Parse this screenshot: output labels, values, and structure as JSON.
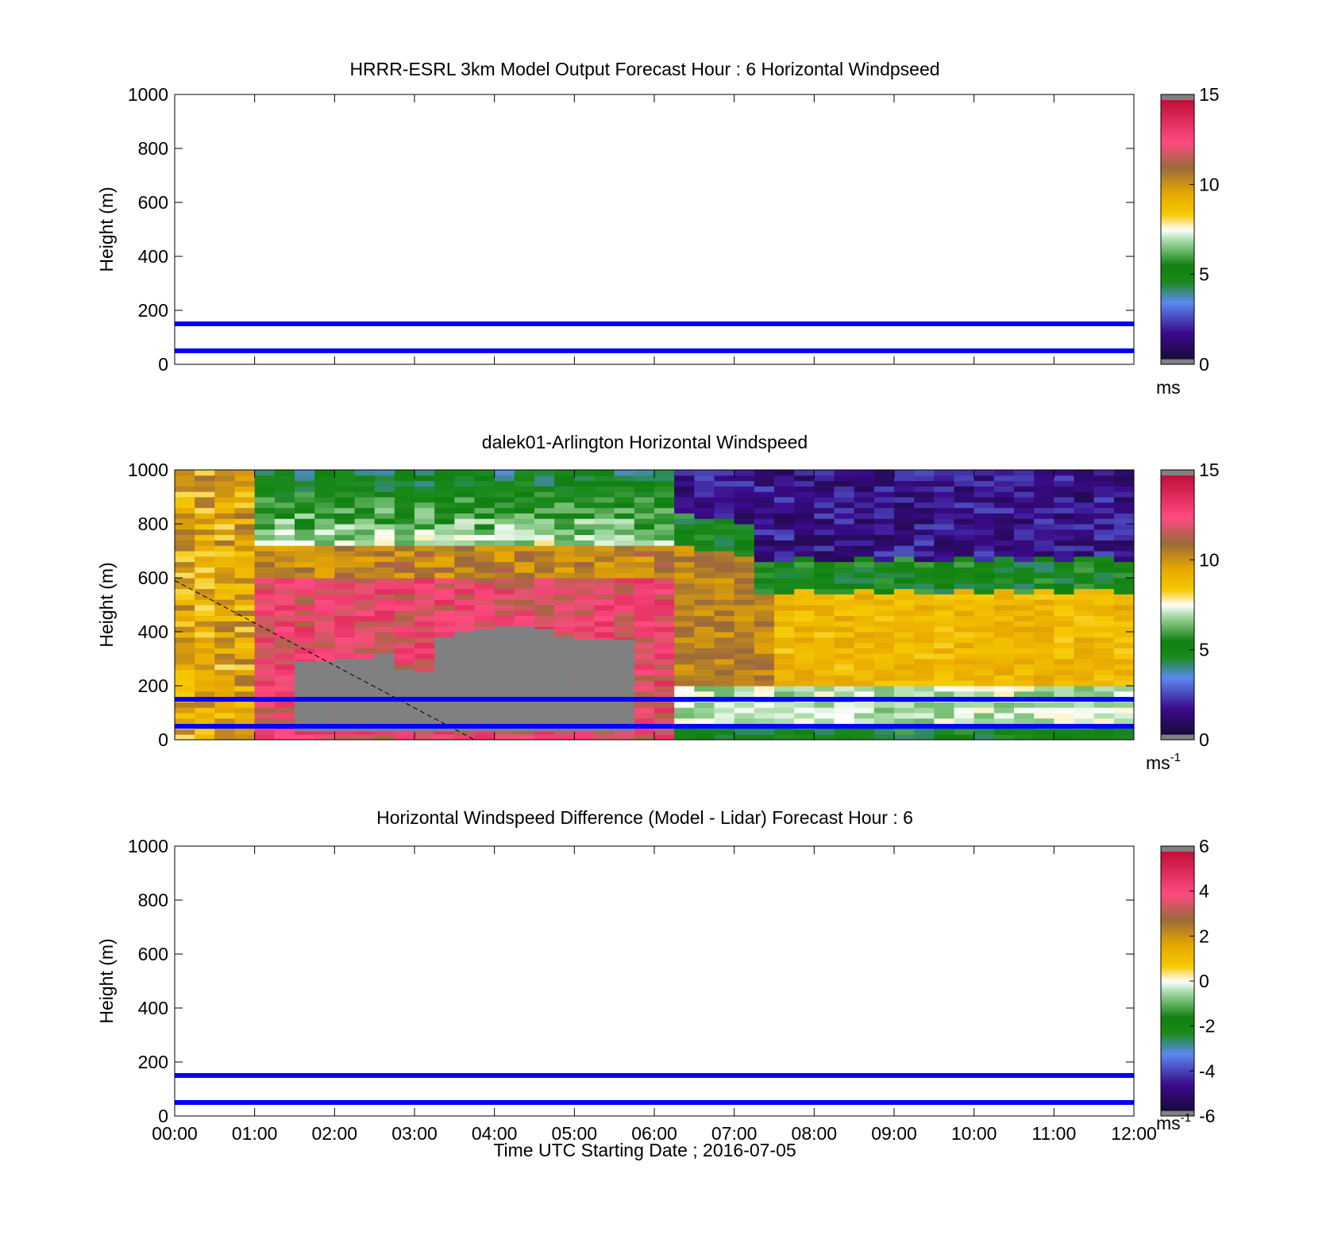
{
  "chart_data": [
    {
      "type": "heatmap",
      "title": "HRRR-ESRL 3km Model Output   Forecast Hour : 6 Horizontal Windpseed",
      "ylabel": "Height (m)",
      "xlabel": "",
      "ylim": [
        0,
        1000
      ],
      "xlim": [
        "00:00",
        "12:00"
      ],
      "y_ticks": [
        "0",
        "200",
        "400",
        "600",
        "800",
        "1000"
      ],
      "x_ticks": [
        "00:00",
        "01:00",
        "02:00",
        "03:00",
        "04:00",
        "05:00",
        "06:00",
        "07:00",
        "08:00",
        "09:00",
        "10:00",
        "11:00",
        "12:00"
      ],
      "show_x_tick_labels": false,
      "reference_lines_m": [
        50,
        150
      ],
      "reference_line_color": "#0000ff",
      "data": "none",
      "colorbar": {
        "min": 0,
        "max": 15,
        "ticks": [
          "0",
          "5",
          "10",
          "15"
        ],
        "unit": "ms",
        "unit_superscript": "",
        "colormap": "windspeed"
      }
    },
    {
      "type": "heatmap",
      "title": "dalek01-Arlington  Horizontal Windspeed",
      "ylabel": "Height (m)",
      "xlabel": "",
      "ylim": [
        0,
        1000
      ],
      "xlim": [
        "00:00",
        "12:00"
      ],
      "y_ticks": [
        "0",
        "200",
        "400",
        "600",
        "800",
        "1000"
      ],
      "x_ticks": [
        "00:00",
        "01:00",
        "02:00",
        "03:00",
        "04:00",
        "05:00",
        "06:00",
        "07:00",
        "08:00",
        "09:00",
        "10:00",
        "11:00",
        "12:00"
      ],
      "show_x_tick_labels": false,
      "reference_lines_m": [
        50,
        150
      ],
      "reference_line_color": "#0000ff",
      "data": "lidar",
      "time_step_minutes": 15,
      "height_step_m": 20,
      "data_end_hour": 11.75,
      "missing_color": "#808080",
      "missing_top_m": [
        0,
        0,
        0,
        0,
        0,
        0,
        290,
        290,
        300,
        300,
        320,
        260,
        250,
        380,
        400,
        410,
        420,
        420,
        410,
        380,
        370,
        370,
        370,
        0,
        0,
        0,
        0,
        0,
        0,
        0,
        0,
        0,
        0,
        0,
        0,
        0,
        0,
        0,
        0,
        0,
        0,
        0,
        0,
        0,
        0,
        0,
        0,
        0
      ],
      "missing_bottom_m": 30,
      "mixing_layer_line": {
        "from": [
          0,
          590
        ],
        "to": [
          3.75,
          0
        ],
        "style": "dashed"
      },
      "windspeed_profile_ms": [
        {
          "height_m": 30,
          "speed_ms": 12
        },
        {
          "height_m": 600,
          "speed_ms": 11.5
        },
        {
          "height_m": 1000,
          "speed_ms": 4
        }
      ],
      "colorbar": {
        "min": 0,
        "max": 15,
        "ticks": [
          "0",
          "5",
          "10",
          "15"
        ],
        "unit": "ms",
        "unit_superscript": "-1",
        "colormap": "windspeed"
      }
    },
    {
      "type": "heatmap",
      "title": "Horizontal Windspeed Difference (Model - Lidar) Forecast Hour : 6",
      "ylabel": "Height (m)",
      "xlabel": "Time UTC  Starting Date ; 2016-07-05",
      "ylim": [
        0,
        1000
      ],
      "xlim": [
        "00:00",
        "12:00"
      ],
      "y_ticks": [
        "0",
        "200",
        "400",
        "600",
        "800",
        "1000"
      ],
      "x_ticks": [
        "00:00",
        "01:00",
        "02:00",
        "03:00",
        "04:00",
        "05:00",
        "06:00",
        "07:00",
        "08:00",
        "09:00",
        "10:00",
        "11:00",
        "12:00"
      ],
      "show_x_tick_labels": true,
      "reference_lines_m": [
        50,
        150
      ],
      "reference_line_color": "#0000ff",
      "data": "none",
      "colorbar": {
        "min": -6,
        "max": 6,
        "ticks": [
          "-6",
          "-4",
          "-2",
          "0",
          "2",
          "4",
          "6"
        ],
        "unit": "ms",
        "unit_superscript": "-1",
        "colormap": "windspeed"
      }
    }
  ],
  "colormap_stops": [
    {
      "t": 0.0,
      "color": "#1a0a3a"
    },
    {
      "t": 0.1,
      "color": "#3a0a8a"
    },
    {
      "t": 0.22,
      "color": "#5b8af0"
    },
    {
      "t": 0.3,
      "color": "#1a8a1a"
    },
    {
      "t": 0.36,
      "color": "#108010"
    },
    {
      "t": 0.46,
      "color": "#a8dca8"
    },
    {
      "t": 0.5,
      "color": "#ffffff"
    },
    {
      "t": 0.56,
      "color": "#f5c800"
    },
    {
      "t": 0.64,
      "color": "#e8a800"
    },
    {
      "t": 0.74,
      "color": "#9a6a3a"
    },
    {
      "t": 0.84,
      "color": "#ff4a80"
    },
    {
      "t": 1.0,
      "color": "#c0103a"
    }
  ],
  "colormap_end_color": "#808080"
}
